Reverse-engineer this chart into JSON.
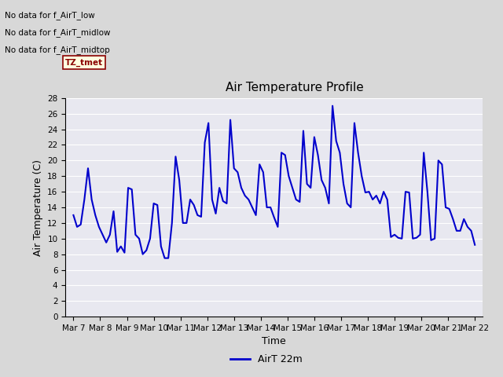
{
  "title": "Air Temperature Profile",
  "xlabel": "Time",
  "ylabel": "Air Temperature (C)",
  "ylim": [
    0,
    28
  ],
  "yticks": [
    0,
    2,
    4,
    6,
    8,
    10,
    12,
    14,
    16,
    18,
    20,
    22,
    24,
    26,
    28
  ],
  "line_color": "#0000cc",
  "line_width": 1.5,
  "legend_label": "AirT 22m",
  "no_data_labels": [
    "No data for f_AirT_low",
    "No data for f_AirT_midlow",
    "No data for f_AirT_midtop"
  ],
  "tz_label": "TZ_tmet",
  "figure_facecolor": "#d8d8d8",
  "plot_bg_color": "#e8e8f0",
  "x_dates": [
    "Mar 7",
    "Mar 8",
    "Mar 9",
    "Mar 10",
    "Mar 11",
    "Mar 12",
    "Mar 13",
    "Mar 14",
    "Mar 15",
    "Mar 16",
    "Mar 17",
    "Mar 18",
    "Mar 19",
    "Mar 20",
    "Mar 21",
    "Mar 22"
  ],
  "y_values": [
    13.0,
    11.5,
    11.8,
    15.0,
    19.0,
    15.0,
    13.0,
    11.5,
    10.5,
    9.5,
    10.5,
    13.5,
    8.3,
    9.0,
    8.2,
    16.5,
    16.3,
    10.5,
    10.0,
    8.0,
    8.5,
    10.0,
    14.5,
    14.3,
    9.0,
    7.5,
    7.5,
    12.0,
    20.5,
    17.5,
    12.0,
    12.0,
    15.0,
    14.3,
    13.0,
    12.8,
    22.3,
    24.8,
    15.0,
    13.2,
    16.5,
    14.8,
    14.5,
    25.2,
    19.0,
    18.5,
    16.5,
    15.5,
    15.0,
    14.0,
    13.0,
    19.5,
    18.5,
    14.0,
    14.0,
    12.7,
    11.5,
    21.0,
    20.7,
    18.0,
    16.5,
    15.0,
    14.7,
    23.8,
    17.0,
    16.5,
    23.0,
    20.7,
    17.5,
    16.5,
    14.5,
    27.0,
    22.5,
    21.0,
    17.0,
    14.5,
    14.0,
    24.8,
    21.0,
    18.0,
    15.9,
    16.0,
    15.0,
    15.5,
    14.5,
    16.0,
    15.0,
    10.2,
    10.5,
    10.1,
    10.0,
    16.0,
    15.9,
    10.0,
    10.1,
    10.5,
    21.0,
    16.0,
    9.8,
    10.0,
    20.0,
    19.5,
    14.0,
    13.8,
    12.5,
    11.0,
    11.0,
    12.5,
    11.5,
    11.0,
    9.2
  ]
}
